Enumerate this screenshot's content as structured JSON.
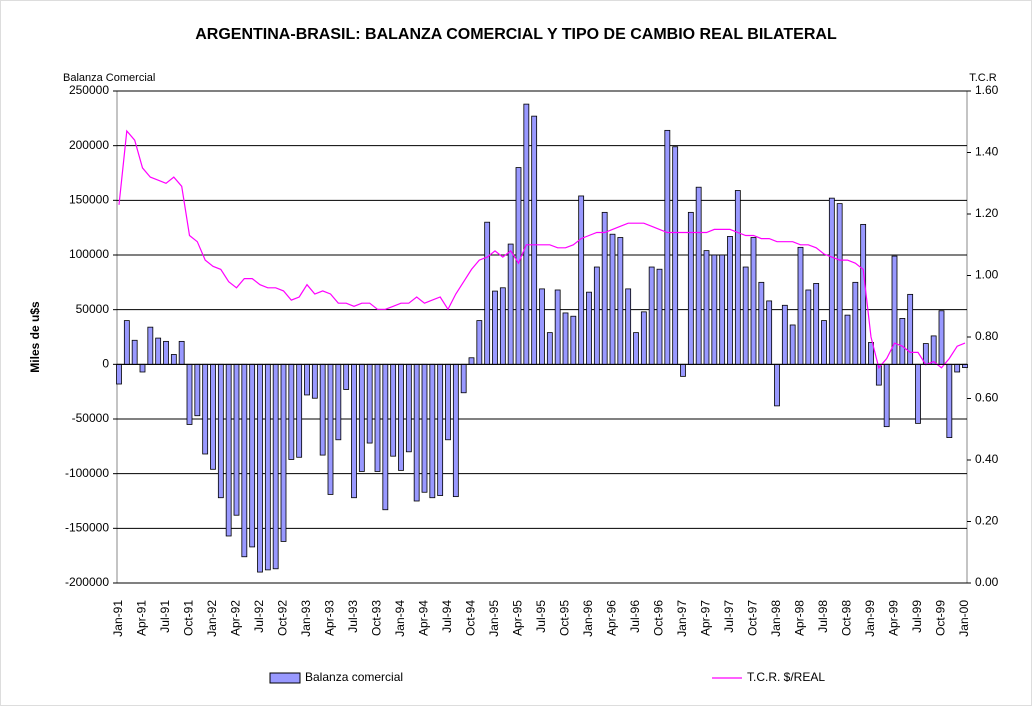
{
  "chart_data": {
    "type": "bar_line",
    "title": "ARGENTINA-BRASIL: BALANZA COMERCIAL Y TIPO DE CAMBIO REAL BILATERAL",
    "y_axis_label": "Miles de u$s",
    "y_axis_caption": "Balanza Comercial",
    "y2_axis_caption": "T.C.R",
    "categories": [
      "Jan-91",
      null,
      null,
      "Apr-91",
      null,
      null,
      "Jul-91",
      null,
      null,
      "Oct-91",
      null,
      null,
      "Jan-92",
      null,
      null,
      "Apr-92",
      null,
      null,
      "Jul-92",
      null,
      null,
      "Oct-92",
      null,
      null,
      "Jan-93",
      null,
      null,
      "Apr-93",
      null,
      null,
      "Jul-93",
      null,
      null,
      "Oct-93",
      null,
      null,
      "Jan-94",
      null,
      null,
      "Apr-94",
      null,
      null,
      "Jul-94",
      null,
      null,
      "Oct-94",
      null,
      null,
      "Jan-95",
      null,
      null,
      "Apr-95",
      null,
      null,
      "Jul-95",
      null,
      null,
      "Oct-95",
      null,
      null,
      "Jan-96",
      null,
      null,
      "Apr-96",
      null,
      null,
      "Jul-96",
      null,
      null,
      "Oct-96",
      null,
      null,
      "Jan-97",
      null,
      null,
      "Apr-97",
      null,
      null,
      "Jul-97",
      null,
      null,
      "Oct-97",
      null,
      null,
      "Jan-98",
      null,
      null,
      "Apr-98",
      null,
      null,
      "Jul-98",
      null,
      null,
      "Oct-98",
      null,
      null,
      "Jan-99",
      null,
      null,
      "Apr-99",
      null,
      null,
      "Jul-99",
      null,
      null,
      "Oct-99",
      null,
      null,
      "Jan-00"
    ],
    "series": [
      {
        "name": "Balanza comercial",
        "type": "bar",
        "color": "#9999ff",
        "values": [
          -18000,
          40000,
          22000,
          -7000,
          34000,
          24000,
          21000,
          9000,
          21000,
          -55000,
          -47000,
          -82000,
          -96000,
          -122000,
          -157000,
          -138000,
          -176000,
          -167000,
          -190000,
          -188000,
          -187000,
          -162000,
          -87000,
          -85000,
          -28000,
          -31000,
          -83000,
          -119000,
          -69000,
          -23000,
          -122000,
          -98000,
          -72000,
          -98000,
          -133000,
          -84000,
          -97000,
          -80000,
          -125000,
          -117000,
          -122000,
          -120000,
          -69000,
          -121000,
          -26000,
          6000,
          40000,
          130000,
          67000,
          70000,
          110000,
          180000,
          238000,
          227000,
          69000,
          29000,
          68000,
          47000,
          44000,
          154000,
          66000,
          89000,
          139000,
          119000,
          116000,
          69000,
          29000,
          48000,
          89000,
          87000,
          214000,
          199000,
          -11000,
          139000,
          162000,
          104000,
          100000,
          100000,
          117000,
          159000,
          89000,
          116000,
          75000,
          58000,
          -38000,
          54000,
          36000,
          107000,
          68000,
          74000,
          40000,
          152000,
          147000,
          45000,
          75000,
          128000,
          20000,
          -19000,
          -57000,
          99000,
          42000,
          64000,
          -54000,
          19000,
          26000,
          49000,
          -67000,
          -7000,
          -3000
        ]
      },
      {
        "name": "T.C.R. $/REAL",
        "type": "line",
        "axis": "y2",
        "color": "#ff00ff",
        "values": [
          1.23,
          1.47,
          1.44,
          1.35,
          1.32,
          1.31,
          1.3,
          1.32,
          1.29,
          1.13,
          1.11,
          1.05,
          1.03,
          1.02,
          0.98,
          0.96,
          0.99,
          0.99,
          0.97,
          0.96,
          0.96,
          0.95,
          0.92,
          0.93,
          0.97,
          0.94,
          0.95,
          0.94,
          0.91,
          0.91,
          0.9,
          0.91,
          0.91,
          0.89,
          0.89,
          0.9,
          0.91,
          0.91,
          0.93,
          0.91,
          0.92,
          0.93,
          0.89,
          0.94,
          0.98,
          1.02,
          1.05,
          1.06,
          1.08,
          1.06,
          1.08,
          1.04,
          1.1,
          1.1,
          1.1,
          1.1,
          1.09,
          1.09,
          1.1,
          1.12,
          1.13,
          1.14,
          1.14,
          1.15,
          1.16,
          1.17,
          1.17,
          1.17,
          1.16,
          1.15,
          1.14,
          1.14,
          1.14,
          1.14,
          1.14,
          1.14,
          1.15,
          1.15,
          1.15,
          1.14,
          1.13,
          1.13,
          1.12,
          1.12,
          1.11,
          1.11,
          1.11,
          1.1,
          1.1,
          1.09,
          1.07,
          1.06,
          1.05,
          1.05,
          1.04,
          1.02,
          0.8,
          0.7,
          0.73,
          0.78,
          0.77,
          0.75,
          0.75,
          0.71,
          0.72,
          0.7,
          0.73,
          0.77,
          0.78
        ]
      }
    ],
    "ylim": [
      -200000,
      250000
    ],
    "yticks": [
      -200000,
      -150000,
      -100000,
      -50000,
      0,
      50000,
      100000,
      150000,
      200000,
      250000
    ],
    "y2lim": [
      0,
      1.6
    ],
    "y2ticks": [
      {
        "value": 0,
        "label": "0.00"
      },
      {
        "value": 0.2,
        "label": "0.20"
      },
      {
        "value": 0.4,
        "label": "0.40"
      },
      {
        "value": 0.6,
        "label": "0.60"
      },
      {
        "value": 0.8,
        "label": "0.80"
      },
      {
        "value": 1.0,
        "label": "1.00"
      },
      {
        "value": 1.2,
        "label": "1.20"
      },
      {
        "value": 1.4,
        "label": "1.40"
      },
      {
        "value": 1.6,
        "label": "1.60"
      }
    ],
    "grid": true
  }
}
